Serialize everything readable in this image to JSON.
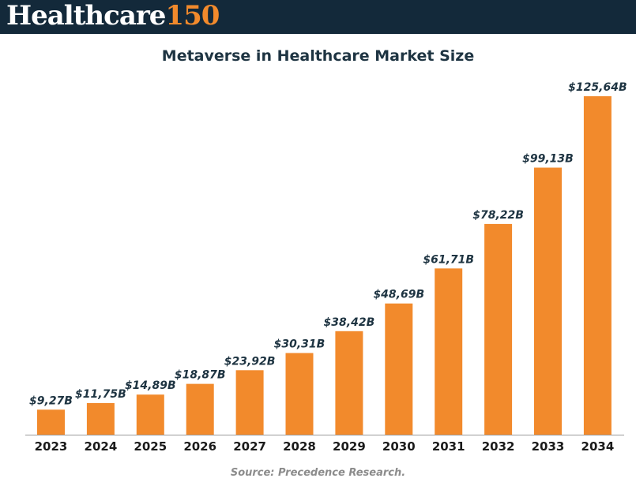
{
  "header": {
    "logo_word": "Healthcare",
    "logo_number": "150"
  },
  "source_text": "Source: Precedence Research.",
  "colors": {
    "header_bg": "#13293a",
    "bar": "#f28a2c",
    "logo_accent": "#f28a2c",
    "text_dark": "#1e3442"
  },
  "chart_data": {
    "type": "bar",
    "title": "Metaverse in Healthcare Market Size",
    "xlabel": "",
    "ylabel": "",
    "categories": [
      "2023",
      "2024",
      "2025",
      "2026",
      "2027",
      "2028",
      "2029",
      "2030",
      "2031",
      "2032",
      "2033",
      "2034"
    ],
    "values": [
      9.27,
      11.75,
      14.89,
      18.87,
      23.92,
      30.31,
      38.42,
      48.69,
      61.71,
      78.22,
      99.13,
      125.64
    ],
    "labels": [
      "$9,27B",
      "$11,75B",
      "$14,89B",
      "$18,87B",
      "$23,92B",
      "$30,31B",
      "$38,42B",
      "$48,69B",
      "$61,71B",
      "$78,22B",
      "$99,13B",
      "$125,64B"
    ],
    "ylim": [
      0,
      125.64
    ],
    "grid": false,
    "legend": "none"
  }
}
